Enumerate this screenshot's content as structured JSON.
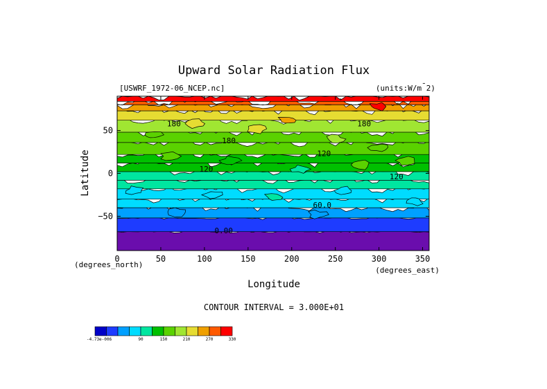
{
  "chart_data": {
    "type": "heatmap",
    "title": "Upward Solar Radiation Flux",
    "source_label": "[USWRF_1972-06_NCEP.nc]",
    "units_label": "(units:W/m^2)",
    "xlabel": "Longitude",
    "ylabel": "Latitude",
    "x_unit_label": "(degrees_east)",
    "y_unit_label": "(degrees_north)",
    "xlim": [
      0,
      357.5
    ],
    "ylim": [
      -90,
      90
    ],
    "x_ticks": [
      0,
      50,
      100,
      150,
      200,
      250,
      300,
      350
    ],
    "y_ticks": [
      -50,
      0,
      50
    ],
    "y_tick_labels": [
      "−50",
      "0",
      "50"
    ],
    "contour_interval": "CONTOUR INTERVAL = 3.000E+01",
    "contour_labels": [
      {
        "text": "180",
        "lon": 65,
        "lat": 55
      },
      {
        "text": "180",
        "lon": 128,
        "lat": 35
      },
      {
        "text": "180",
        "lon": 283,
        "lat": 55
      },
      {
        "text": "120",
        "lon": 102,
        "lat": 2
      },
      {
        "text": "120",
        "lon": 237,
        "lat": 20
      },
      {
        "text": "120",
        "lon": 320,
        "lat": -7
      },
      {
        "text": "60.0",
        "lon": 235,
        "lat": -40
      },
      {
        "text": "0.00",
        "lon": 122,
        "lat": -70
      }
    ],
    "colorbar": {
      "levels": [
        "-4.73e-006",
        "30",
        "60",
        "90",
        "120",
        "150",
        "180",
        "210",
        "240",
        "270",
        "300",
        "330"
      ],
      "labels": [
        "-4.73e-006",
        "90",
        "150",
        "210",
        "270",
        "330"
      ],
      "colors": [
        "#0000c8",
        "#1e3cff",
        "#00a0ff",
        "#00dcff",
        "#00e6a0",
        "#00c000",
        "#5ad200",
        "#a0e632",
        "#e6dc32",
        "#f0a000",
        "#ff5a00",
        "#ff0000"
      ]
    },
    "lat_bands": [
      {
        "from": 90,
        "to": 84,
        "level": 10
      },
      {
        "from": 84,
        "to": 80,
        "level": 9
      },
      {
        "from": 80,
        "to": 73,
        "level": 8
      },
      {
        "from": 73,
        "to": 62,
        "level": 7
      },
      {
        "from": 62,
        "to": 48,
        "level": 6
      },
      {
        "from": 48,
        "to": 36,
        "level": 5
      },
      {
        "from": 36,
        "to": 22,
        "level": 5
      },
      {
        "from": 22,
        "to": 12,
        "level": 4
      },
      {
        "from": 12,
        "to": 2,
        "level": 4
      },
      {
        "from": 2,
        "to": -8,
        "level": 3
      },
      {
        "from": -8,
        "to": -18,
        "level": 3
      },
      {
        "from": -18,
        "to": -30,
        "level": 2
      },
      {
        "from": -30,
        "to": -40,
        "level": 2
      },
      {
        "from": -40,
        "to": -52,
        "level": 1
      },
      {
        "from": -52,
        "to": -68,
        "level": 0
      },
      {
        "from": -68,
        "to": -90,
        "level": -1
      }
    ]
  }
}
